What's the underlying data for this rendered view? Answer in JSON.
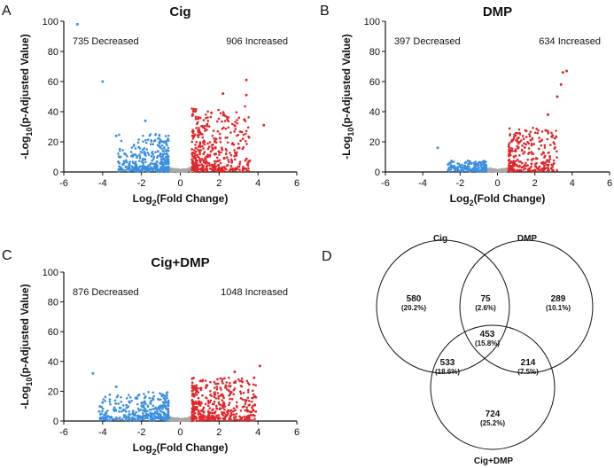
{
  "panels": {
    "a": {
      "letter": "A"
    },
    "b": {
      "letter": "B"
    },
    "c": {
      "letter": "C"
    },
    "d": {
      "letter": "D"
    }
  },
  "colors": {
    "decreased": "#3b8fe0",
    "increased": "#e0262a",
    "nonsig": "#a8a8a8"
  },
  "chart_data": [
    {
      "type": "scatter",
      "panel": "A",
      "title": "Cig",
      "xlabel_main": "Log",
      "xlabel_sub": "2",
      "xlabel_rest": "(Fold Change)",
      "ylabel_main": "-Log",
      "ylabel_sub": "10",
      "ylabel_rest": "(p-Adjusted Value)",
      "xlim": [
        -6,
        6
      ],
      "ylim": [
        0,
        100
      ],
      "xticks": [
        -6,
        -4,
        -2,
        0,
        2,
        4,
        6
      ],
      "yticks": [
        0,
        20,
        40,
        60,
        80,
        100
      ],
      "annotations": {
        "decreased": "735 Decreased",
        "increased": "906 Increased"
      },
      "outliers": [
        {
          "x": -5.3,
          "y": 98,
          "group": "decreased"
        },
        {
          "x": -4.0,
          "y": 60,
          "group": "decreased"
        },
        {
          "x": -3.3,
          "y": 24,
          "group": "decreased"
        },
        {
          "x": -1.8,
          "y": 34,
          "group": "decreased"
        },
        {
          "x": 3.4,
          "y": 61,
          "group": "increased"
        },
        {
          "x": 3.4,
          "y": 51,
          "group": "increased"
        },
        {
          "x": 2.2,
          "y": 52,
          "group": "increased"
        },
        {
          "x": 4.3,
          "y": 31,
          "group": "increased"
        }
      ]
    },
    {
      "type": "scatter",
      "panel": "B",
      "title": "DMP",
      "xlabel_main": "Log",
      "xlabel_sub": "2",
      "xlabel_rest": "(Fold Change)",
      "ylabel_main": "-Log",
      "ylabel_sub": "10",
      "ylabel_rest": "(p-Adjusted Value)",
      "xlim": [
        -6,
        6
      ],
      "ylim": [
        0,
        100
      ],
      "xticks": [
        -6,
        -4,
        -2,
        0,
        2,
        4,
        6
      ],
      "yticks": [
        0,
        20,
        40,
        60,
        80,
        100
      ],
      "annotations": {
        "decreased": "397 Decreased",
        "increased": "634 Increased"
      },
      "outliers": [
        {
          "x": -3.2,
          "y": 16,
          "group": "decreased"
        },
        {
          "x": 3.7,
          "y": 67,
          "group": "increased"
        },
        {
          "x": 3.5,
          "y": 66,
          "group": "increased"
        },
        {
          "x": 3.4,
          "y": 58,
          "group": "increased"
        },
        {
          "x": 3.2,
          "y": 50,
          "group": "increased"
        },
        {
          "x": 2.7,
          "y": 38,
          "group": "increased"
        }
      ]
    },
    {
      "type": "scatter",
      "panel": "C",
      "title": "Cig+DMP",
      "xlabel_main": "Log",
      "xlabel_sub": "2",
      "xlabel_rest": "(Fold Change)",
      "ylabel_main": "-Log",
      "ylabel_sub": "10",
      "ylabel_rest": "(p-Adjusted Value)",
      "xlim": [
        -6,
        6
      ],
      "ylim": [
        0,
        100
      ],
      "xticks": [
        -6,
        -4,
        -2,
        0,
        2,
        4,
        6
      ],
      "yticks": [
        0,
        20,
        40,
        60,
        80,
        100
      ],
      "annotations": {
        "decreased": "876 Decreased",
        "increased": "1048 Increased"
      },
      "outliers": [
        {
          "x": -4.5,
          "y": 32,
          "group": "decreased"
        },
        {
          "x": -3.3,
          "y": 23,
          "group": "decreased"
        },
        {
          "x": 4.1,
          "y": 37,
          "group": "increased"
        },
        {
          "x": 2.8,
          "y": 33,
          "group": "increased"
        },
        {
          "x": 3.8,
          "y": 29,
          "group": "increased"
        }
      ]
    }
  ],
  "venn": {
    "sets": {
      "cig": "Cig",
      "dmp": "DMP",
      "both": "Cig+DMP"
    },
    "regions": {
      "cig_only": {
        "count": "580",
        "pct": "(20.2%)"
      },
      "dmp_only": {
        "count": "289",
        "pct": "(10.1%)"
      },
      "cigdmp_only": {
        "count": "724",
        "pct": "(25.2%)"
      },
      "cig_dmp": {
        "count": "75",
        "pct": "(2.6%)"
      },
      "cig_cigdmp": {
        "count": "533",
        "pct": "(18.6%)"
      },
      "dmp_cigdmp": {
        "count": "214",
        "pct": "(7.5%)"
      },
      "all": {
        "count": "453",
        "pct": "(15.8%)"
      }
    }
  }
}
